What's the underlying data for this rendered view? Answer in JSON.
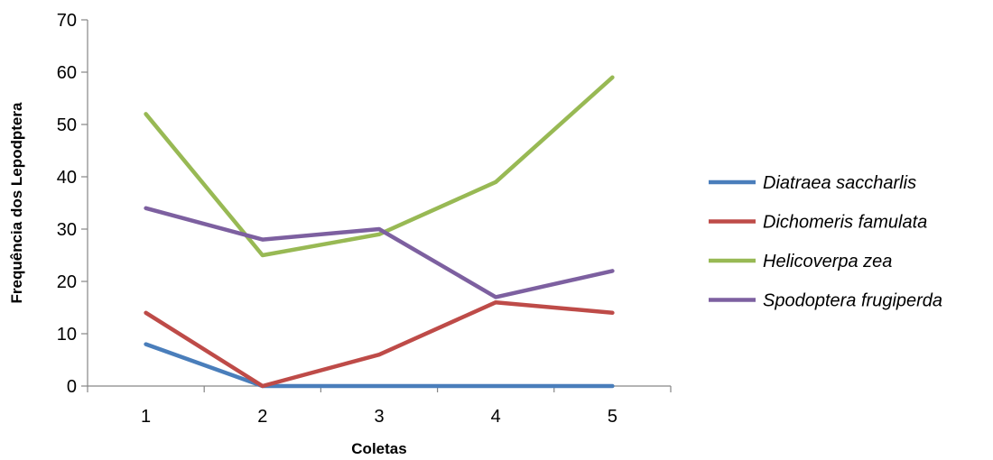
{
  "chart_data": {
    "type": "line",
    "title": "",
    "xlabel": "Coletas",
    "ylabel": "Frequência dos Lepodptera",
    "categories": [
      "1",
      "2",
      "3",
      "4",
      "5"
    ],
    "ylim": [
      0,
      70
    ],
    "yticks": [
      "0",
      "10",
      "20",
      "30",
      "40",
      "50",
      "60",
      "70"
    ],
    "grid": false,
    "legend": "right",
    "series": [
      {
        "name": "Diatraea saccharlis",
        "color": "#4a7ebb",
        "values": [
          8,
          0,
          0,
          0,
          0
        ]
      },
      {
        "name": "Dichomeris famulata",
        "color": "#be4b48",
        "values": [
          14,
          0,
          6,
          16,
          14
        ]
      },
      {
        "name": "Helicoverpa zea",
        "color": "#98b954",
        "values": [
          52,
          25,
          29,
          39,
          59
        ]
      },
      {
        "name": "Spodoptera frugiperda",
        "color": "#7d60a0",
        "values": [
          34,
          28,
          30,
          17,
          22
        ]
      }
    ]
  }
}
